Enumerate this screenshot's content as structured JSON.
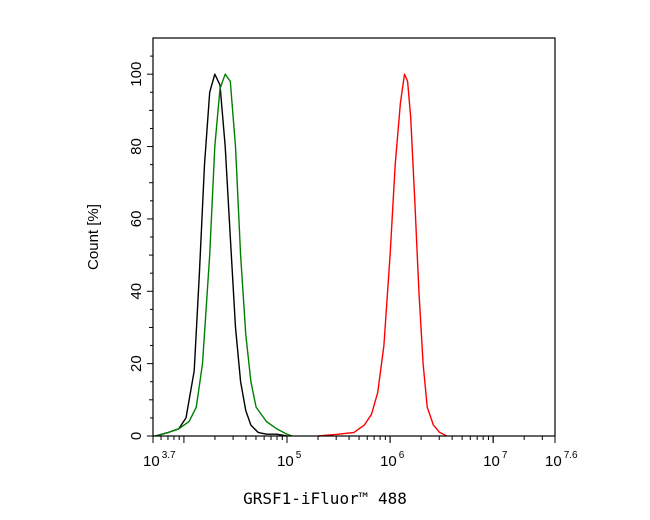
{
  "chart_data": {
    "type": "line",
    "title": "",
    "xlabel": "GRSF1-iFluor™ 488",
    "ylabel": "Count [%]",
    "x_scale": "log10",
    "xlim_exp": [
      3.7,
      7.6
    ],
    "ylim": [
      0,
      110
    ],
    "grid": false,
    "legend": "none",
    "x_ticks": [
      {
        "base": "10",
        "exp": "3.7",
        "value_exp": 3.7
      },
      {
        "base": "10",
        "exp": "5",
        "value_exp": 5
      },
      {
        "base": "10",
        "exp": "6",
        "value_exp": 6
      },
      {
        "base": "10",
        "exp": "7",
        "value_exp": 7
      },
      {
        "base": "10",
        "exp": "7.6",
        "value_exp": 7.6
      }
    ],
    "y_ticks": [
      {
        "label": "0",
        "value": 0
      },
      {
        "label": "20",
        "value": 20
      },
      {
        "label": "40",
        "value": 40
      },
      {
        "label": "60",
        "value": 60
      },
      {
        "label": "80",
        "value": 80
      },
      {
        "label": "100",
        "value": 100
      }
    ],
    "series": [
      {
        "color": "#000000",
        "x_exp": [
          3.72,
          3.85,
          3.95,
          4.02,
          4.1,
          4.15,
          4.2,
          4.25,
          4.3,
          4.35,
          4.4,
          4.45,
          4.5,
          4.55,
          4.6,
          4.65,
          4.72,
          4.8,
          4.9,
          5.0
        ],
        "y": [
          0,
          1,
          2,
          5,
          18,
          45,
          75,
          95,
          100,
          97,
          80,
          55,
          30,
          15,
          7,
          3,
          1,
          0.5,
          0.5,
          0
        ]
      },
      {
        "color": "#008000",
        "x_exp": [
          3.72,
          3.85,
          3.95,
          4.05,
          4.12,
          4.18,
          4.25,
          4.3,
          4.35,
          4.4,
          4.45,
          4.5,
          4.55,
          4.6,
          4.65,
          4.7,
          4.8,
          4.9,
          5.0,
          5.05
        ],
        "y": [
          0,
          1,
          2,
          4,
          8,
          20,
          50,
          80,
          96,
          100,
          98,
          80,
          50,
          28,
          15,
          8,
          4,
          2,
          0.5,
          0
        ]
      },
      {
        "color": "#ff0000",
        "x_exp": [
          5.3,
          5.5,
          5.65,
          5.75,
          5.82,
          5.88,
          5.94,
          6.0,
          6.05,
          6.1,
          6.14,
          6.17,
          6.2,
          6.24,
          6.28,
          6.32,
          6.36,
          6.42,
          6.48,
          6.55
        ],
        "y": [
          0,
          0.5,
          1,
          3,
          6,
          12,
          25,
          50,
          75,
          92,
          100,
          98,
          88,
          65,
          40,
          20,
          8,
          3,
          1,
          0
        ]
      }
    ]
  }
}
